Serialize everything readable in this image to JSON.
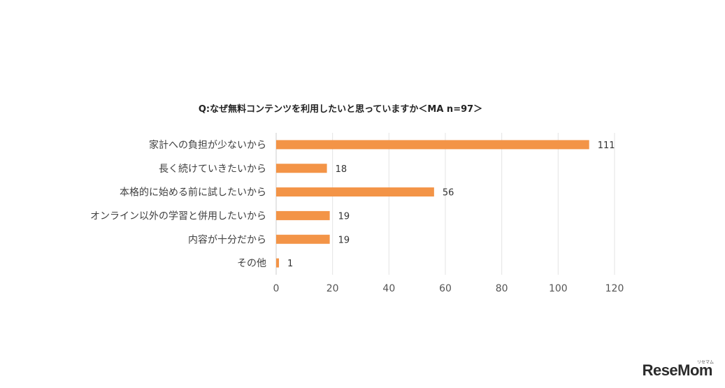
{
  "chart_data": {
    "type": "bar",
    "orientation": "horizontal",
    "title": "Q:なぜ無料コンテンツを利用したいと思っていますか＜MA n=97＞",
    "categories": [
      "家計への負担が少ないから",
      "長く続けていきたいから",
      "本格的に始める前に試したいから",
      "オンライン以外の学習と併用したいから",
      "内容が十分だから",
      "その他"
    ],
    "values": [
      111,
      18,
      56,
      19,
      19,
      1
    ],
    "xlim": [
      0,
      120
    ],
    "xticks": [
      "0",
      "20",
      "40",
      "60",
      "80",
      "100",
      "120"
    ],
    "grid": true,
    "bar_color": "#f39447"
  },
  "logo": {
    "text": "ReseMom",
    "small": "リセマム"
  }
}
